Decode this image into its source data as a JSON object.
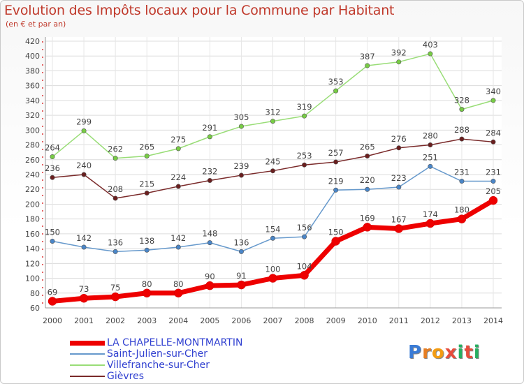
{
  "title": "Evolution des Impôts locaux pour la Commune par Habitant",
  "subtitle": "(en € et par an)",
  "logo": {
    "text": "Proxiti",
    "letters": [
      "P",
      "r",
      "o",
      "x",
      "i",
      "t",
      "i"
    ],
    "colors": [
      "#3a7bd5",
      "#e67e22",
      "#f39c12",
      "#e74c3c",
      "#27ae60",
      "#e74c3c",
      "#27ae60"
    ]
  },
  "chart_data": {
    "type": "line",
    "title": "Evolution des Impôts locaux pour la Commune par Habitant",
    "ylabel": "(en € et par an)",
    "xlabel": "",
    "categories": [
      "2000",
      "2001",
      "2002",
      "2003",
      "2004",
      "2005",
      "2006",
      "2007",
      "2008",
      "2009",
      "2010",
      "2011",
      "2012",
      "2013",
      "2014"
    ],
    "ylim": [
      60,
      420
    ],
    "yticks": [
      60,
      80,
      100,
      120,
      140,
      160,
      180,
      200,
      220,
      240,
      260,
      280,
      300,
      320,
      340,
      360,
      380,
      400,
      420
    ],
    "grid": true,
    "legend_position": "bottom-left",
    "series": [
      {
        "name": "Villefranche-sur-Cher",
        "color": "#99dd77",
        "marker": "#77cc44",
        "values": [
          264,
          299,
          262,
          265,
          275,
          291,
          305,
          312,
          319,
          353,
          387,
          392,
          403,
          328,
          340
        ]
      },
      {
        "name": "Gièvres",
        "color": "#7a2a2a",
        "marker": "#6a1f1f",
        "values": [
          236,
          240,
          208,
          215,
          224,
          232,
          239,
          245,
          253,
          257,
          265,
          276,
          280,
          288,
          284
        ]
      },
      {
        "name": "Saint-Julien-sur-Cher",
        "color": "#6699cc",
        "marker": "#4a86c8",
        "values": [
          150,
          142,
          136,
          138,
          142,
          148,
          136,
          154,
          156,
          219,
          220,
          223,
          251,
          231,
          231
        ]
      },
      {
        "name": "LA CHAPELLE-MONTMARTIN",
        "color": "#ee0000",
        "marker": "#ee0000",
        "values": [
          69,
          73,
          75,
          80,
          80,
          90,
          91,
          100,
          104,
          150,
          169,
          167,
          174,
          180,
          205
        ]
      }
    ],
    "legend": [
      "LA CHAPELLE-MONTMARTIN",
      "Saint-Julien-sur-Cher",
      "Villefranche-sur-Cher",
      "Gièvres"
    ]
  }
}
